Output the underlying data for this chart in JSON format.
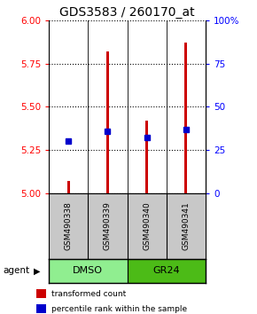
{
  "title": "GDS3583 / 260170_at",
  "samples": [
    "GSM490338",
    "GSM490339",
    "GSM490340",
    "GSM490341"
  ],
  "red_values": [
    5.07,
    5.82,
    5.42,
    5.87
  ],
  "blue_values": [
    5.3,
    5.36,
    5.32,
    5.37
  ],
  "ylim": [
    5.0,
    6.0
  ],
  "yticks_left": [
    5.0,
    5.25,
    5.5,
    5.75,
    6.0
  ],
  "yticks_right_labels": [
    "0",
    "25",
    "50",
    "75",
    "100%"
  ],
  "yticks_right_vals": [
    5.0,
    5.25,
    5.5,
    5.75,
    6.0
  ],
  "agent_groups": [
    {
      "label": "DMSO",
      "color": "#90EE90",
      "span": [
        0,
        2
      ]
    },
    {
      "label": "GR24",
      "color": "#4CBB17",
      "span": [
        2,
        4
      ]
    }
  ],
  "bar_color": "#CC0000",
  "dot_color": "#0000CC",
  "bar_width": 0.07,
  "dot_size": 28,
  "legend_items": [
    {
      "color": "#CC0000",
      "label": "transformed count"
    },
    {
      "color": "#0000CC",
      "label": "percentile rank within the sample"
    }
  ],
  "sample_box_color": "#C8C8C8",
  "base_value": 5.0,
  "title_fontsize": 10
}
